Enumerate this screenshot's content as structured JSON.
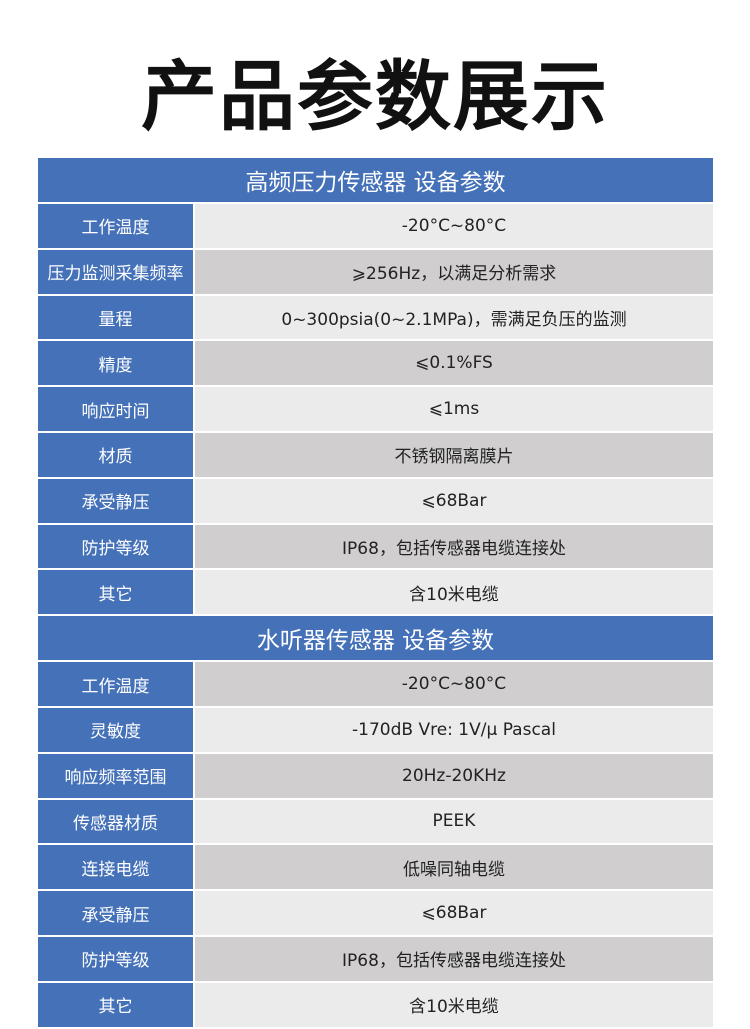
{
  "title": "产品参数展示",
  "colors": {
    "header_blue": "#4471b8",
    "row_light": "#ebebeb",
    "row_dark": "#d0cece"
  },
  "sections": [
    {
      "heading": "高频压力传感器 设备参数",
      "rows": [
        {
          "label": "工作温度",
          "value": "-20°C~80°C"
        },
        {
          "label": "压力监测采集频率",
          "value": "⩾256Hz，以满足分析需求"
        },
        {
          "label": "量程",
          "value": "0~300psia(0~2.1MPa)，需满足负压的监测"
        },
        {
          "label": "精度",
          "value": "⩽0.1%FS"
        },
        {
          "label": "响应时间",
          "value": "⩽1ms"
        },
        {
          "label": "材质",
          "value": "不锈钢隔离膜片"
        },
        {
          "label": "承受静压",
          "value": "⩽68Bar"
        },
        {
          "label": "防护等级",
          "value": "IP68，包括传感器电缆连接处"
        },
        {
          "label": "其它",
          "value": "含10米电缆"
        }
      ]
    },
    {
      "heading": "水听器传感器 设备参数",
      "rows": [
        {
          "label": "工作温度",
          "value": "-20°C~80°C"
        },
        {
          "label": "灵敏度",
          "value": "-170dB  Vre: 1V/μ Pascal"
        },
        {
          "label": "响应频率范围",
          "value": "20Hz-20KHz"
        },
        {
          "label": "传感器材质",
          "value": "PEEK"
        },
        {
          "label": "连接电缆",
          "value": "低噪同轴电缆"
        },
        {
          "label": "承受静压",
          "value": "⩽68Bar"
        },
        {
          "label": "防护等级",
          "value": "IP68，包括传感器电缆连接处"
        },
        {
          "label": "其它",
          "value": "含10米电缆"
        }
      ]
    }
  ]
}
